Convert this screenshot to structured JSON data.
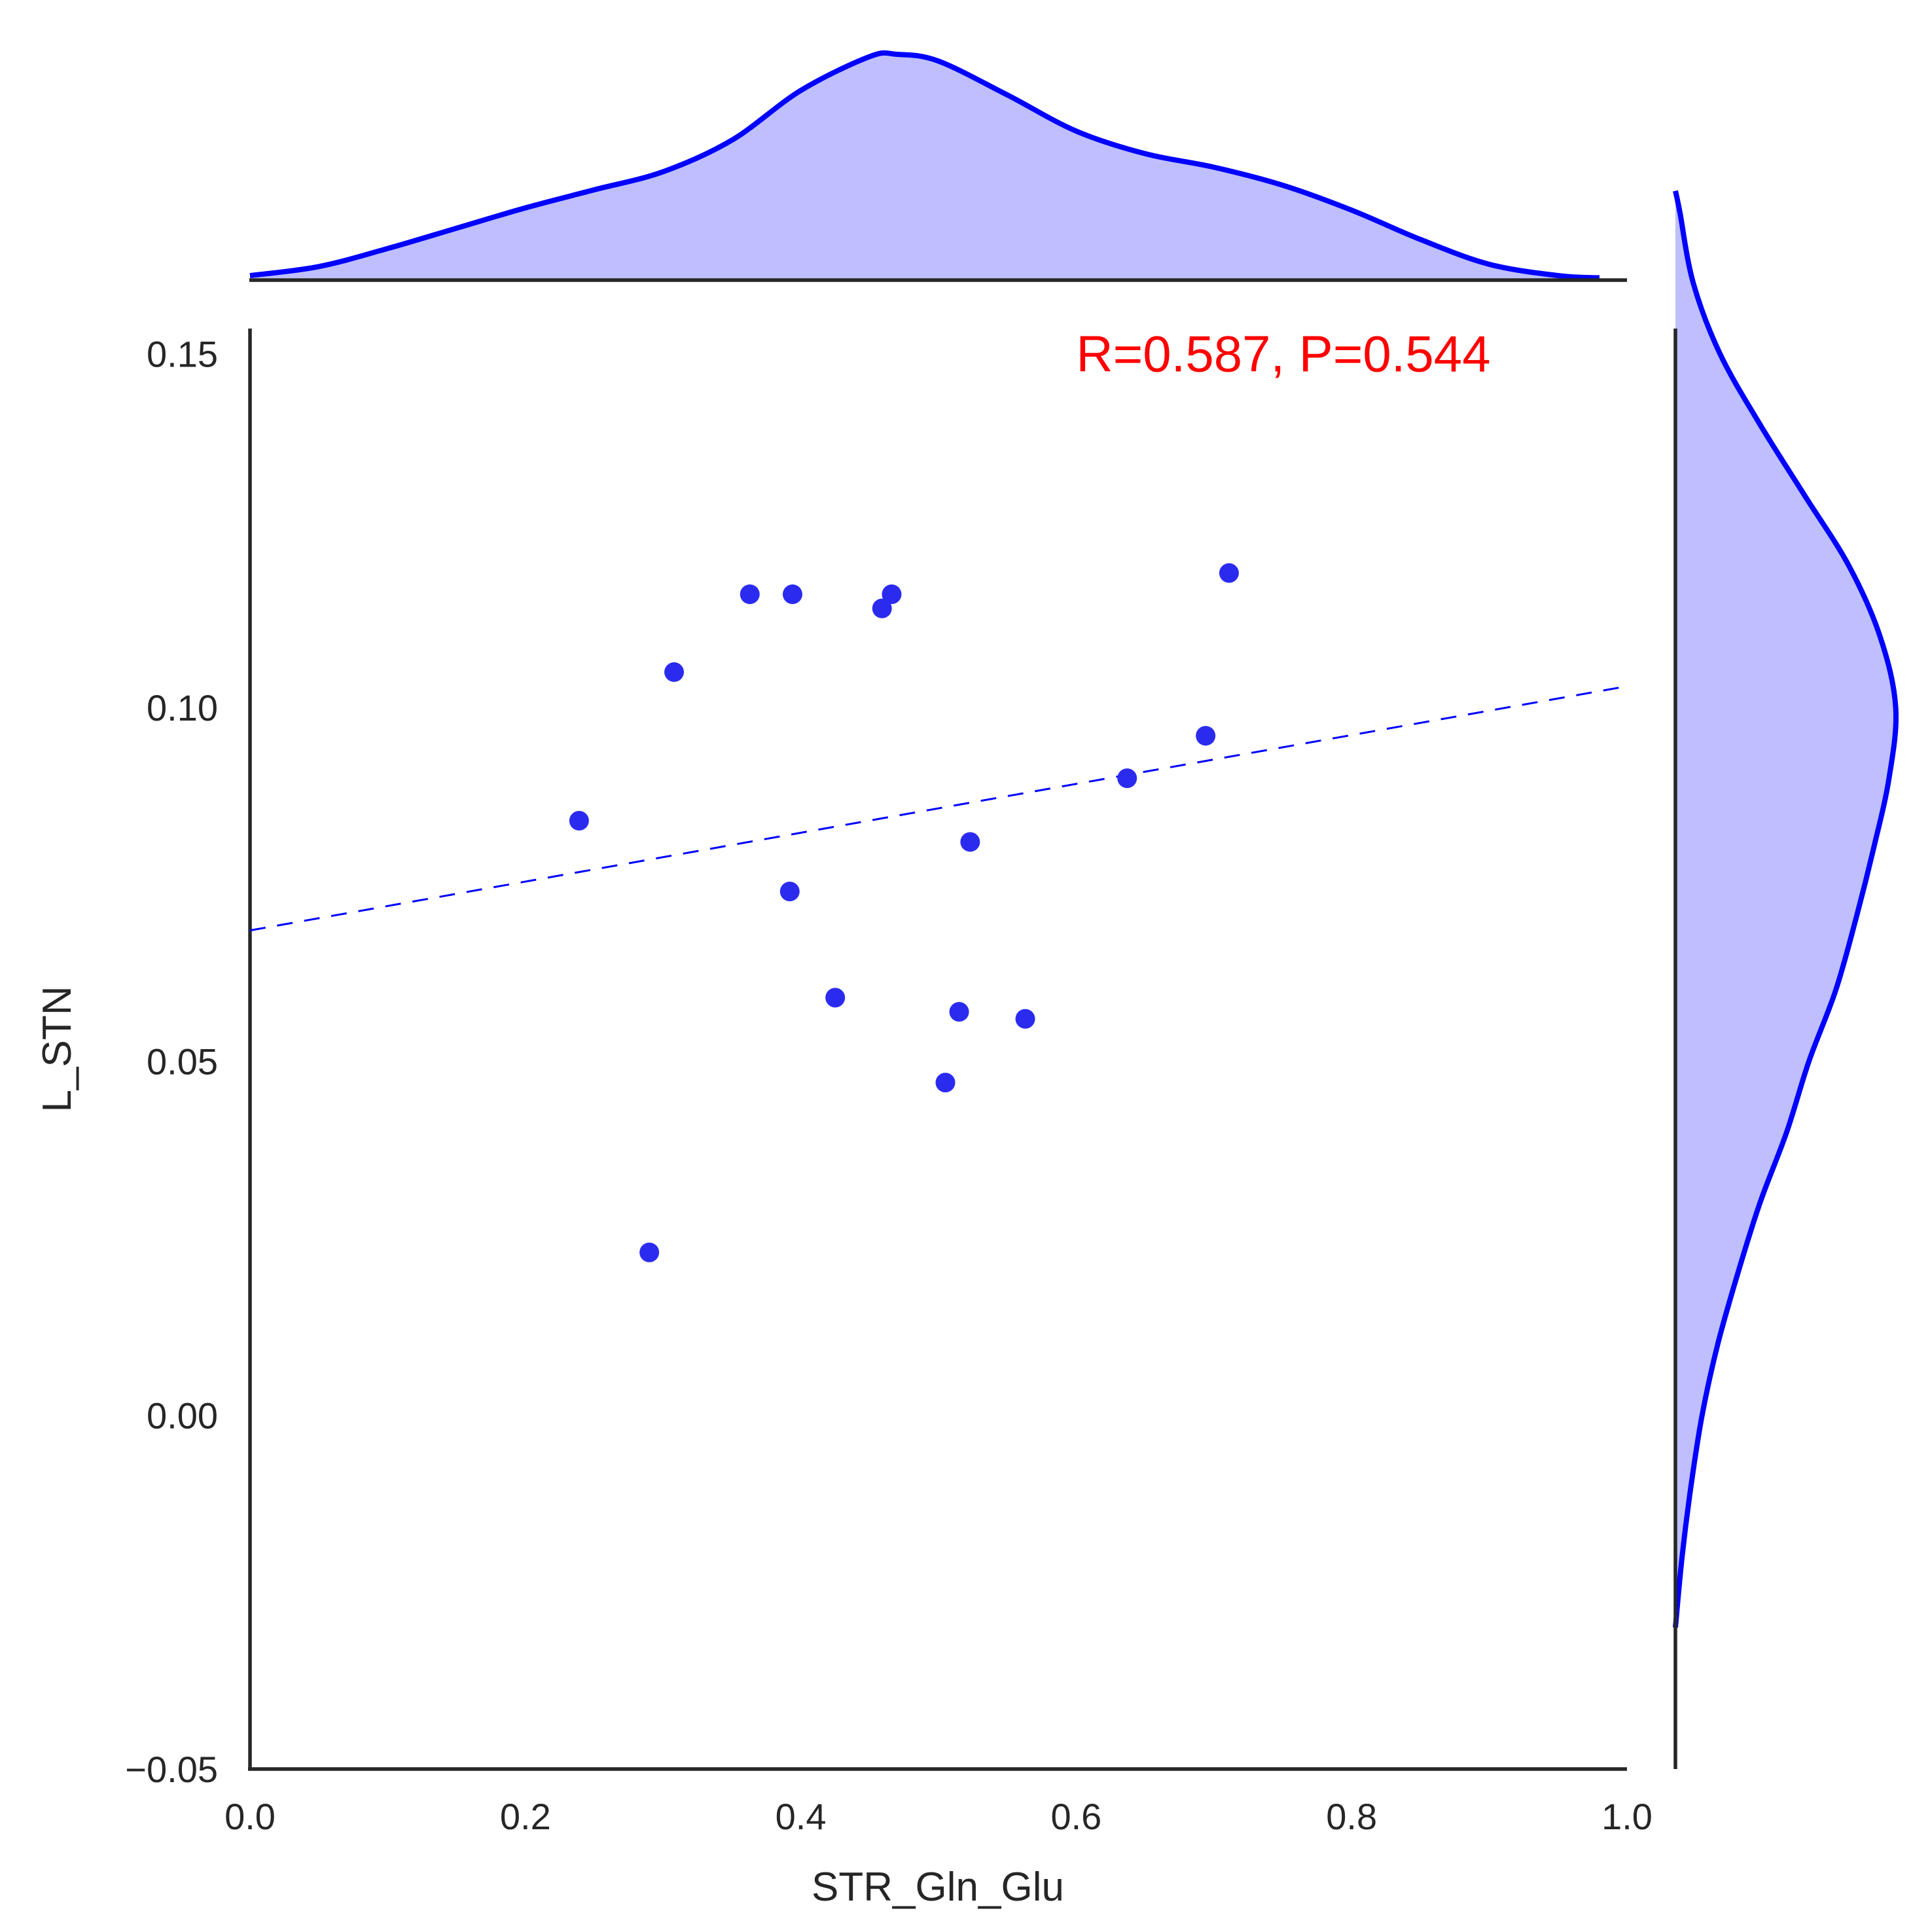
{
  "chart_data": {
    "type": "scatter",
    "title": "",
    "xlabel": "STR_Gln_Glu",
    "ylabel": "L_STN",
    "xlim": [
      0.0,
      1.0
    ],
    "ylim": [
      -0.05,
      0.175
    ],
    "x_ticks": [
      "0.0",
      "0.2",
      "0.4",
      "0.6",
      "0.8",
      "1.0"
    ],
    "y_ticks": [
      "−0.05",
      "0.00",
      "0.05",
      "0.10",
      "0.15"
    ],
    "x_tick_values": [
      0.0,
      0.2,
      0.4,
      0.6,
      0.8,
      1.0
    ],
    "y_tick_values": [
      -0.05,
      0.0,
      0.05,
      0.1,
      0.15
    ],
    "grid": false,
    "point_color": "#2b2bf0",
    "line_color": "#0000ff",
    "kde_fill_color": "#bfbfff",
    "points": [
      {
        "x": 0.239,
        "y": 0.084
      },
      {
        "x": 0.29,
        "y": 0.023
      },
      {
        "x": 0.308,
        "y": 0.105
      },
      {
        "x": 0.363,
        "y": 0.116
      },
      {
        "x": 0.392,
        "y": 0.074
      },
      {
        "x": 0.394,
        "y": 0.116
      },
      {
        "x": 0.425,
        "y": 0.059
      },
      {
        "x": 0.459,
        "y": 0.114
      },
      {
        "x": 0.466,
        "y": 0.116
      },
      {
        "x": 0.505,
        "y": 0.047
      },
      {
        "x": 0.515,
        "y": 0.057
      },
      {
        "x": 0.523,
        "y": 0.081
      },
      {
        "x": 0.563,
        "y": 0.056
      },
      {
        "x": 0.637,
        "y": 0.09
      },
      {
        "x": 0.694,
        "y": 0.096
      },
      {
        "x": 0.711,
        "y": 0.119
      }
    ],
    "regression": {
      "intercept": 0.0685,
      "slope": 0.0345,
      "style": "dashed"
    },
    "marginal_x": {
      "kind": "kde",
      "x": [
        0.0,
        0.05,
        0.1,
        0.15,
        0.2,
        0.25,
        0.3,
        0.35,
        0.4,
        0.45,
        0.47,
        0.5,
        0.55,
        0.6,
        0.65,
        0.7,
        0.75,
        0.8,
        0.85,
        0.9,
        0.95,
        0.98
      ],
      "density": [
        0.02,
        0.06,
        0.14,
        0.23,
        0.32,
        0.4,
        0.48,
        0.62,
        0.84,
        0.99,
        1.0,
        0.97,
        0.82,
        0.66,
        0.56,
        0.5,
        0.42,
        0.31,
        0.18,
        0.07,
        0.02,
        0.01
      ]
    },
    "marginal_y": {
      "kind": "kde",
      "y": [
        -0.03,
        -0.02,
        -0.01,
        0.0,
        0.01,
        0.02,
        0.03,
        0.04,
        0.05,
        0.06,
        0.07,
        0.08,
        0.09,
        0.1,
        0.11,
        0.12,
        0.13,
        0.14,
        0.15,
        0.16,
        0.17,
        0.173
      ],
      "density": [
        0.0,
        0.03,
        0.07,
        0.12,
        0.19,
        0.28,
        0.38,
        0.5,
        0.6,
        0.72,
        0.81,
        0.89,
        0.96,
        0.99,
        0.92,
        0.78,
        0.58,
        0.38,
        0.2,
        0.08,
        0.02,
        0.0
      ]
    },
    "annotation": {
      "text": "R=0.587, P=0.544",
      "color": "#ff0000",
      "x": 0.6,
      "y": 0.15
    }
  }
}
